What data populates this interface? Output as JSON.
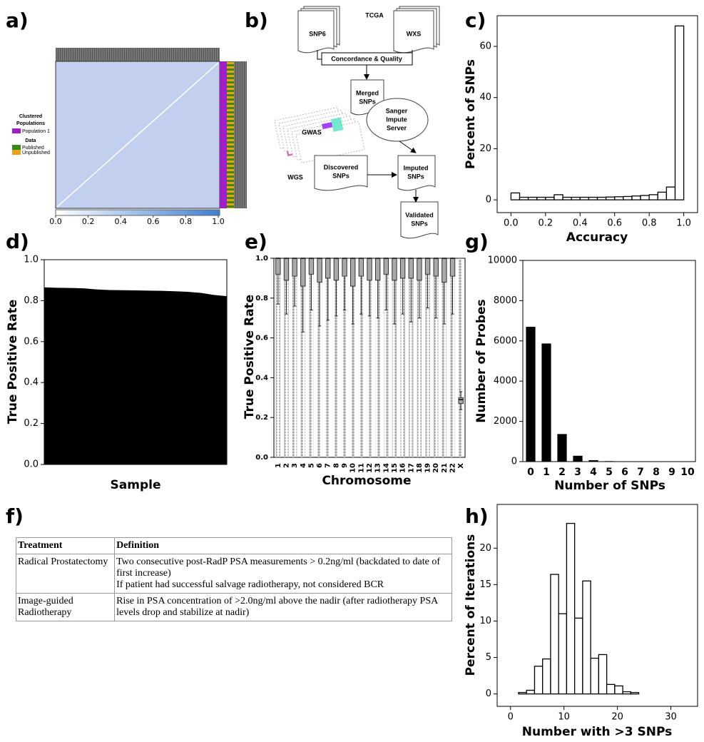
{
  "panel_labels": [
    "a)",
    "b)",
    "c)",
    "d)",
    "e)",
    "f)",
    "g)",
    "h)"
  ],
  "panel_a": {
    "legend": {
      "title_lines": [
        "Clustered",
        "Populations"
      ],
      "population": "Population 1",
      "data_title": "Data",
      "published": "Published",
      "unpublished": "Unpublished"
    },
    "colorbar": {
      "lim": [
        0,
        1
      ],
      "ticks": [
        {
          "value": 0,
          "label": "0.0"
        },
        {
          "value": 0.2,
          "label": "0.2"
        },
        {
          "value": 0.4,
          "label": "0.4"
        },
        {
          "value": 0.6,
          "label": "0.6"
        },
        {
          "value": 0.8,
          "label": "0.8"
        },
        {
          "value": 1,
          "label": "1.0"
        }
      ]
    }
  },
  "diagram": {
    "nodes": [
      {
        "lines": [
          "TCGA"
        ]
      },
      {
        "lines": [
          "SNP6"
        ]
      },
      {
        "lines": [
          "WXS"
        ]
      },
      {
        "lines": [
          "Concordance & Quality"
        ]
      },
      {
        "lines": [
          "Merged",
          "SNPs"
        ]
      },
      {
        "lines": [
          "Sanger",
          "Impute",
          "Server"
        ]
      },
      {
        "lines": [
          "GWAS"
        ]
      },
      {
        "lines": [
          "WGS"
        ]
      },
      {
        "lines": [
          "Discovered",
          "SNPs"
        ]
      },
      {
        "lines": [
          "Imputed",
          "SNPs"
        ]
      },
      {
        "lines": [
          "Validated",
          "SNPs"
        ]
      }
    ]
  },
  "table": {
    "header": [
      "Treatment",
      "Definition"
    ],
    "rows": [
      [
        "Radical Prostatectomy",
        [
          "Two consecutive post-RadP PSA measurements > 0.2ng/ml (backdated to date of first increase)",
          "If patient had successful salvage radiotherapy, not considered BCR"
        ]
      ],
      [
        "Image-guided Radiotherapy",
        [
          "Rise in PSA concentration of >2.0ng/ml above the nadir (after radiotherapy PSA levels drop and stabilize at nadir)"
        ]
      ]
    ]
  },
  "chart_data": [
    {
      "type": "histogram",
      "xlabel": "Accuracy",
      "ylabel": "Percent of SNPs",
      "bins": [
        0,
        0.05,
        0.1,
        0.15,
        0.2,
        0.25,
        0.3,
        0.35,
        0.4,
        0.45,
        0.5,
        0.55,
        0.6,
        0.65,
        0.7,
        0.75,
        0.8,
        0.85,
        0.9,
        0.95,
        1.0
      ],
      "values": [
        2.7,
        1.0,
        1.0,
        1.0,
        1.0,
        2.0,
        1.0,
        1.0,
        1.0,
        1.0,
        1.0,
        1.1,
        1.2,
        1.3,
        1.5,
        1.7,
        2.0,
        3.0,
        5.0,
        68
      ],
      "xlim": [
        -0.08,
        1.08
      ],
      "ylim": [
        -5,
        72
      ],
      "yticks": [
        0,
        20,
        40,
        60
      ],
      "xticks": [
        {
          "value": 0,
          "label": "0.0"
        },
        {
          "value": 0.2,
          "label": "0.2"
        },
        {
          "value": 0.4,
          "label": "0.4"
        },
        {
          "value": 0.6,
          "label": "0.6"
        },
        {
          "value": 0.8,
          "label": "0.8"
        },
        {
          "value": 1,
          "label": "1.0"
        }
      ],
      "color": "#ffffff"
    },
    {
      "type": "area",
      "xlabel": "Sample",
      "ylabel": "True Positive Rate",
      "values": [
        0.865,
        0.863,
        0.862,
        0.86,
        0.855,
        0.852,
        0.851,
        0.85,
        0.849,
        0.848,
        0.846,
        0.843,
        0.838,
        0.828,
        0.822
      ],
      "ylim": [
        0,
        1
      ],
      "yticks": [
        {
          "value": 0,
          "label": "0.0"
        },
        {
          "value": 0.2,
          "label": "0.2"
        },
        {
          "value": 0.4,
          "label": "0.4"
        },
        {
          "value": 0.6,
          "label": "0.6"
        },
        {
          "value": 0.8,
          "label": "0.8"
        },
        {
          "value": 1,
          "label": "1.0"
        }
      ],
      "color": "#000000"
    },
    {
      "type": "box",
      "xlabel": "Chromosome",
      "ylabel": "True Positive Rate",
      "categories": [
        "1",
        "2",
        "3",
        "4",
        "5",
        "6",
        "7",
        "8",
        "9",
        "10",
        "11",
        "12",
        "13",
        "14",
        "15",
        "16",
        "17",
        "18",
        "19",
        "20",
        "21",
        "22",
        "X"
      ],
      "q1": [
        0.92,
        0.89,
        0.91,
        0.86,
        0.92,
        0.88,
        0.9,
        0.89,
        0.91,
        0.86,
        0.91,
        0.89,
        0.89,
        0.92,
        0.89,
        0.9,
        0.9,
        0.89,
        0.92,
        0.91,
        0.88,
        0.91,
        0.27
      ],
      "median": [
        1,
        1,
        1,
        1,
        1,
        1,
        1,
        1,
        1,
        1,
        1,
        1,
        1,
        1,
        1,
        1,
        1,
        1,
        1,
        1,
        1,
        1,
        0.29
      ],
      "q3": [
        1,
        1,
        1,
        1,
        1,
        1,
        1,
        1,
        1,
        1,
        1,
        1,
        1,
        1,
        1,
        1,
        1,
        1,
        1,
        1,
        1,
        1,
        0.3
      ],
      "whisker_low": [
        0.77,
        0.72,
        0.76,
        0.63,
        0.74,
        0.66,
        0.69,
        0.71,
        0.74,
        0.67,
        0.72,
        0.71,
        0.7,
        0.74,
        0.67,
        0.72,
        0.68,
        0.7,
        0.75,
        0.7,
        0.67,
        0.72,
        0.24
      ],
      "whisker_high": [
        1,
        1,
        1,
        1,
        1,
        1,
        1,
        1,
        1,
        1,
        1,
        1,
        1,
        1,
        1,
        1,
        1,
        1,
        1,
        1,
        1,
        1,
        0.33
      ],
      "ylim": [
        0,
        1
      ],
      "yticks": [
        {
          "value": 0,
          "label": "0.0"
        },
        {
          "value": 0.2,
          "label": "0.2"
        },
        {
          "value": 0.4,
          "label": "0.4"
        },
        {
          "value": 0.6,
          "label": "0.6"
        },
        {
          "value": 0.8,
          "label": "0.8"
        },
        {
          "value": 1,
          "label": "1.0"
        }
      ],
      "color": "#a9a9a9"
    },
    {
      "type": "bar",
      "xlabel": "Number of SNPs",
      "ylabel": "Number of Probes",
      "categories": [
        "0",
        "1",
        "2",
        "3",
        "4",
        "5",
        "6",
        "7",
        "8",
        "9",
        "10"
      ],
      "values": [
        6700,
        5870,
        1370,
        290,
        70,
        25,
        10,
        5,
        3,
        2,
        1
      ],
      "ylim": [
        0,
        10000
      ],
      "yticks": [
        0,
        2000,
        4000,
        6000,
        8000,
        10000
      ],
      "color": "#000000"
    },
    {
      "type": "histogram",
      "xlabel": "Number with >3 SNPs",
      "ylabel": "Percent of Iterations",
      "bins": [
        0,
        1.5,
        3,
        4.5,
        6,
        7.5,
        9,
        10.5,
        12,
        13.5,
        15,
        16.5,
        18,
        19.5,
        21,
        22.5,
        24,
        25.5,
        27,
        28.5,
        30,
        31.5,
        33
      ],
      "values": [
        0,
        0.2,
        0.5,
        3.8,
        4.8,
        16.4,
        11.0,
        23.4,
        10.4,
        15.5,
        4.9,
        5.4,
        1.3,
        1.1,
        0.3,
        0.2,
        0,
        0,
        0,
        0,
        0,
        0
      ],
      "xlim": [
        -2.5,
        35
      ],
      "ylim": [
        -1.7,
        26
      ],
      "xticks": [
        0,
        10,
        20,
        30
      ],
      "yticks": [
        0,
        5,
        10,
        15,
        20
      ],
      "color": "#ffffff"
    }
  ]
}
